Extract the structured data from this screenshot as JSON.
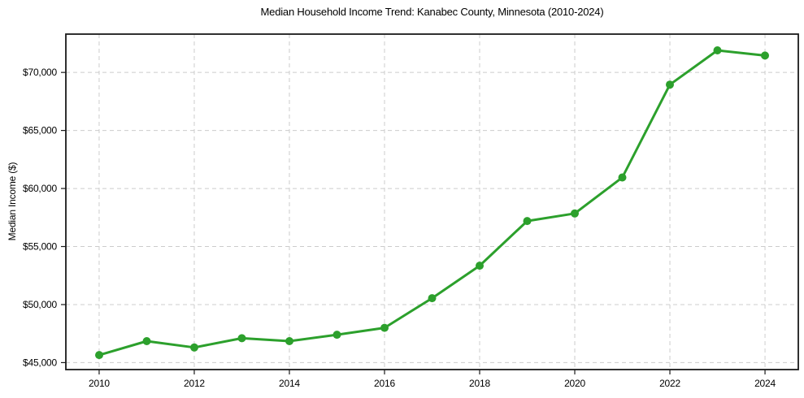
{
  "chart_data": {
    "type": "line",
    "title": "Median Household Income Trend: Kanabec County, Minnesota (2010-2024)",
    "xlabel": "",
    "ylabel": "Median Income ($)",
    "series": [
      {
        "name": "Median Household Income",
        "x": [
          2010,
          2011,
          2012,
          2013,
          2014,
          2015,
          2016,
          2017,
          2018,
          2019,
          2020,
          2021,
          2022,
          2023,
          2024
        ],
        "values": [
          45650,
          46850,
          46300,
          47100,
          46850,
          47400,
          48000,
          50550,
          53350,
          57200,
          57850,
          60950,
          68950,
          71900,
          71450
        ]
      }
    ],
    "xlim": [
      2009.3,
      2024.7
    ],
    "ylim": [
      44400,
      73300
    ],
    "xticks": [
      2010,
      2012,
      2014,
      2016,
      2018,
      2020,
      2022,
      2024
    ],
    "xtick_labels": [
      "2010",
      "2012",
      "2014",
      "2016",
      "2018",
      "2020",
      "2022",
      "2024"
    ],
    "yticks": [
      45000,
      50000,
      55000,
      60000,
      65000,
      70000
    ],
    "ytick_labels": [
      "$45,000",
      "$50,000",
      "$55,000",
      "$60,000",
      "$65,000",
      "$70,000"
    ],
    "grid": true,
    "grid_style": "dashed",
    "legend": false,
    "colors": {
      "line": "#2ca02c",
      "marker": "#2ca02c",
      "grid": "#cccccc",
      "spine": "#1a1a1a",
      "tick": "#1a1a1a",
      "text": "#000000",
      "background": "#ffffff"
    }
  }
}
